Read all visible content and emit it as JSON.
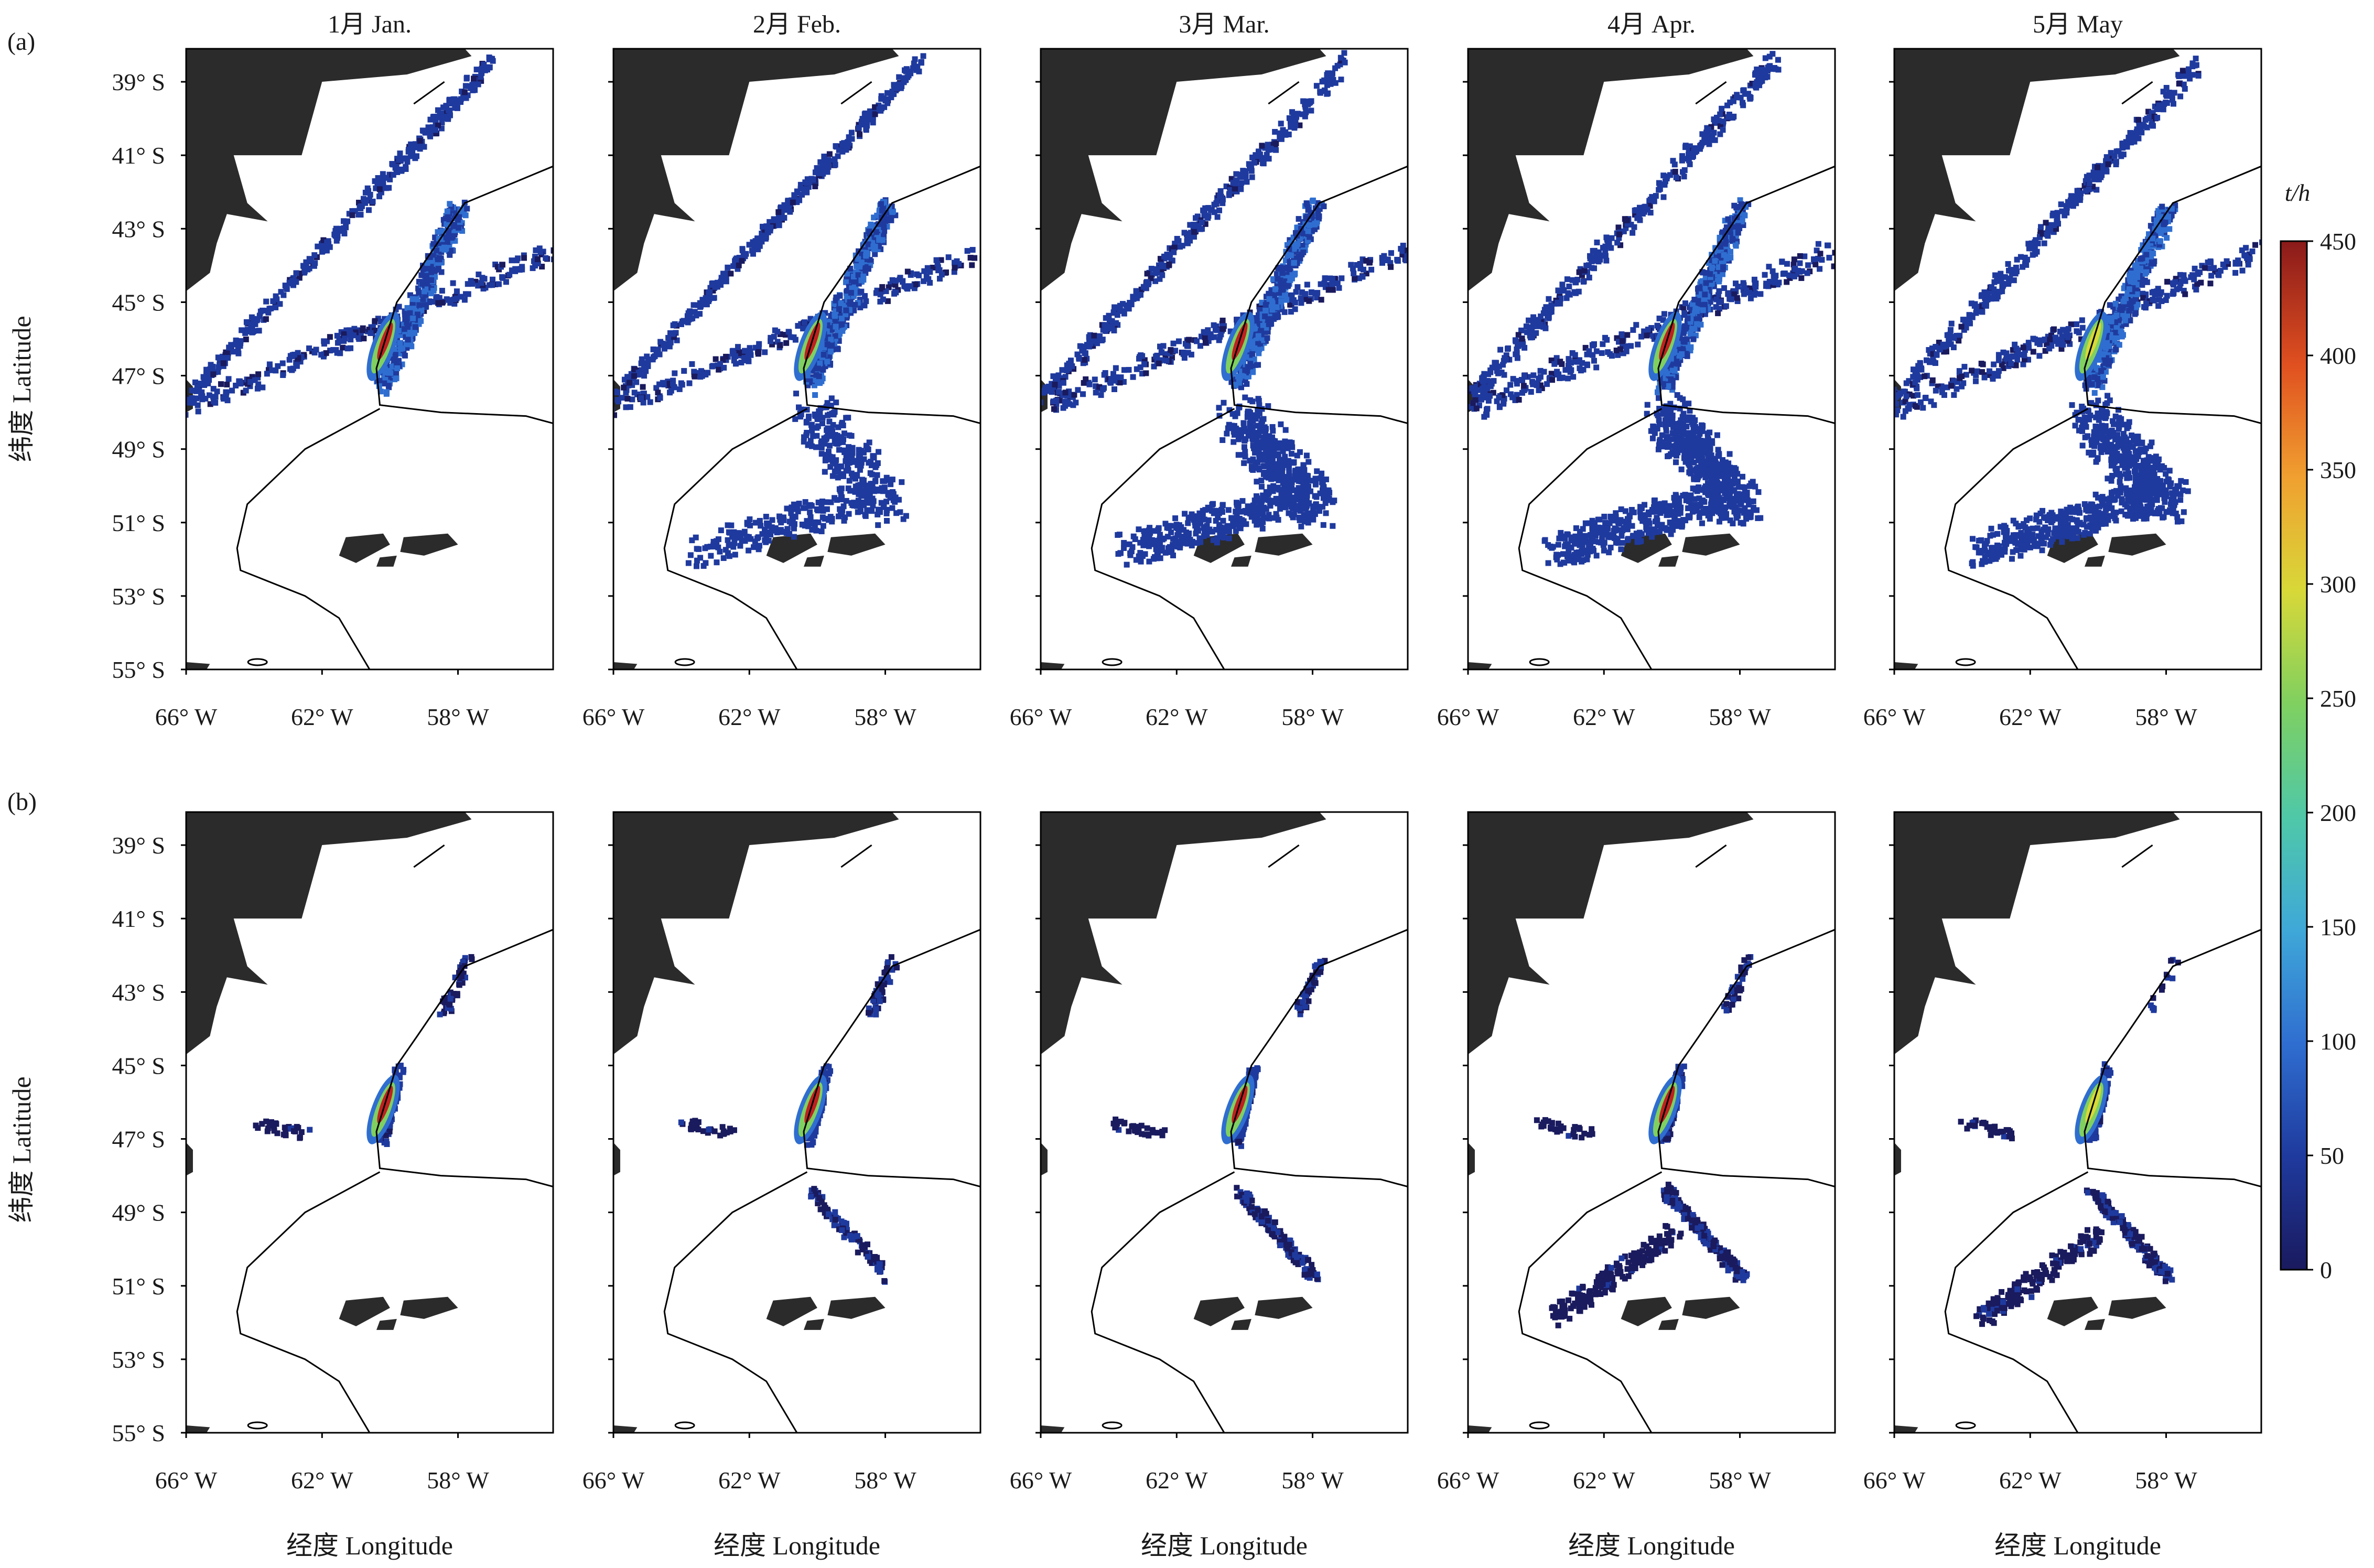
{
  "chart_data": {
    "type": "heatmap",
    "title": "",
    "months": [
      "1月 Jan.",
      "2月 Feb.",
      "3月 Mar.",
      "4月 Apr.",
      "5月 May"
    ],
    "rows": [
      {
        "label": "(a)",
        "key": "a"
      },
      {
        "label": "(b)",
        "key": "b"
      }
    ],
    "xlabel": "经度 Longitude",
    "ylabel": "纬度 Latitude",
    "x_ticks": [
      "66° W",
      "62° W",
      "58° W"
    ],
    "x_tick_values": [
      -66,
      -62,
      -58
    ],
    "y_ticks": [
      "39° S",
      "41° S",
      "43° S",
      "45° S",
      "47° S",
      "49° S",
      "51° S",
      "53° S",
      "55° S"
    ],
    "y_tick_values": [
      -39,
      -41,
      -43,
      -45,
      -47,
      -49,
      -51,
      -53,
      -55
    ],
    "xlim": [
      -66,
      -55.2
    ],
    "ylim": [
      -55,
      -38.1
    ],
    "colorbar": {
      "unit": "t/h",
      "min": 0,
      "max": 450,
      "ticks": [
        "0",
        "50",
        "100",
        "150",
        "200",
        "250",
        "300",
        "350",
        "400",
        "450"
      ],
      "colors": [
        "#1a1a5e",
        "#1f3a9e",
        "#2f6ed0",
        "#3fa8d8",
        "#4fc8a8",
        "#7fd060",
        "#d8d838",
        "#f0a030",
        "#e05020",
        "#8a1a1a"
      ]
    },
    "fishing_grounds": {
      "hotspot_a_center": [
        -60.2,
        -46.2
      ],
      "hotspot_north_center": [
        -58.0,
        -42.5
      ],
      "falklands_fan_center": [
        -60.0,
        -50.5
      ]
    }
  }
}
